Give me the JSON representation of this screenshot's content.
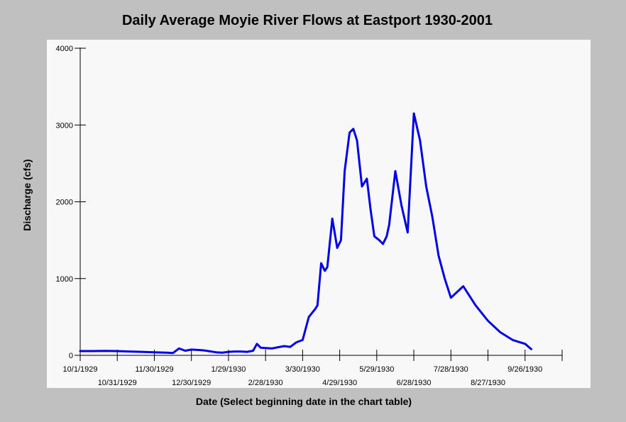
{
  "chart_data": {
    "type": "line",
    "title": "Daily Average Moyie River Flows at Eastport 1930-2001",
    "xlabel": "Date (Select beginning date in the chart table)",
    "ylabel": "Discharge (cfs)",
    "ylim": [
      0,
      4000
    ],
    "y_ticks": [
      "0",
      "1000",
      "2000",
      "3000",
      "4000"
    ],
    "x_tick_labels": [
      "10/1/1929",
      "10/31/1929",
      "11/30/1929",
      "12/30/1929",
      "1/29/1930",
      "2/28/1930",
      "3/30/1930",
      "4/29/1930",
      "5/29/1930",
      "6/28/1930",
      "7/28/1930",
      "8/27/1930",
      "9/26/1930"
    ],
    "x_range_days": [
      0,
      390
    ],
    "line_color": "#0000e6",
    "grid": false,
    "legend": "none",
    "series": [
      {
        "x": [
          0,
          10,
          20,
          30,
          40,
          50,
          60,
          70,
          75,
          80,
          85,
          90,
          95,
          100,
          110,
          115,
          120,
          125,
          130,
          135,
          140,
          143,
          146,
          150,
          155,
          160,
          165,
          170,
          175,
          180,
          185,
          190,
          192,
          195,
          198,
          200,
          204,
          208,
          211,
          214,
          218,
          221,
          224,
          228,
          232,
          235,
          238,
          242,
          245,
          248,
          250,
          255,
          260,
          265,
          270,
          275,
          280,
          285,
          290,
          295,
          300,
          310,
          320,
          330,
          340,
          350,
          360,
          365
        ],
        "y": [
          55,
          55,
          58,
          55,
          50,
          45,
          40,
          35,
          30,
          90,
          60,
          75,
          70,
          65,
          40,
          35,
          45,
          50,
          50,
          45,
          60,
          150,
          100,
          95,
          90,
          105,
          120,
          110,
          170,
          200,
          500,
          600,
          650,
          1200,
          1100,
          1150,
          1780,
          1400,
          1500,
          2400,
          2900,
          2950,
          2800,
          2200,
          2300,
          1900,
          1550,
          1500,
          1450,
          1550,
          1700,
          2400,
          1950,
          1600,
          3150,
          2800,
          2200,
          1800,
          1300,
          1000,
          750,
          900,
          650,
          450,
          300,
          200,
          150,
          80
        ]
      }
    ]
  }
}
